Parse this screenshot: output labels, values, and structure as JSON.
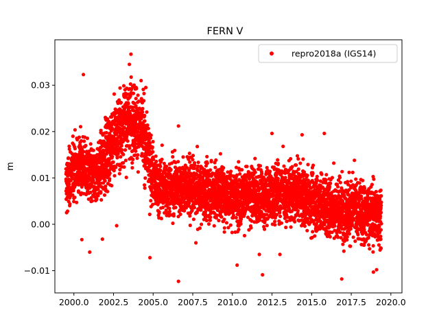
{
  "chart_data": {
    "type": "scatter",
    "title": "FERN V",
    "xlabel": "",
    "ylabel": "m",
    "xlim": [
      1998.8,
      2020.7
    ],
    "ylim": [
      -0.0148,
      0.0398
    ],
    "xticks": [
      2000.0,
      2002.5,
      2005.0,
      2007.5,
      2010.0,
      2012.5,
      2015.0,
      2017.5,
      2020.0
    ],
    "xtick_labels": [
      "2000.0",
      "2002.5",
      "2005.0",
      "2007.5",
      "2010.0",
      "2012.5",
      "2015.0",
      "2017.5",
      "2020.0"
    ],
    "yticks": [
      -0.01,
      0.0,
      0.01,
      0.02,
      0.03
    ],
    "ytick_labels": [
      "−0.01",
      "0.00",
      "0.01",
      "0.02",
      "0.03"
    ],
    "grid": false,
    "legend": {
      "position": "top-right",
      "entries": [
        "repro2018a (IGS14)"
      ]
    },
    "series": [
      {
        "name": "repro2018a (IGS14)",
        "color": "#ff0000",
        "marker": "circle",
        "x_range": [
          1999.5,
          2019.4
        ],
        "notes_trend": [
          [
            1999.5,
            0.008
          ],
          [
            2000.0,
            0.012
          ],
          [
            2000.5,
            0.013
          ],
          [
            2001.0,
            0.01
          ],
          [
            2001.5,
            0.011
          ],
          [
            2002.0,
            0.015
          ],
          [
            2002.5,
            0.018
          ],
          [
            2003.0,
            0.021
          ],
          [
            2003.5,
            0.023
          ],
          [
            2004.0,
            0.022
          ],
          [
            2004.5,
            0.018
          ],
          [
            2004.9,
            0.012
          ],
          [
            2005.2,
            0.008
          ],
          [
            2006.0,
            0.008
          ],
          [
            2007.0,
            0.008
          ],
          [
            2008.0,
            0.007
          ],
          [
            2009.0,
            0.007
          ],
          [
            2010.0,
            0.006
          ],
          [
            2011.0,
            0.006
          ],
          [
            2012.0,
            0.006
          ],
          [
            2013.0,
            0.007
          ],
          [
            2014.0,
            0.007
          ],
          [
            2015.0,
            0.005
          ],
          [
            2016.0,
            0.004
          ],
          [
            2017.0,
            0.003
          ],
          [
            2018.0,
            0.003
          ],
          [
            2019.0,
            0.002
          ],
          [
            2019.4,
            0.002
          ]
        ],
        "outliers": [
          [
            2000.6,
            0.0323
          ],
          [
            2003.6,
            0.0367
          ],
          [
            2003.5,
            0.0345
          ],
          [
            2001.0,
            -0.006
          ],
          [
            2002.7,
            -0.0003
          ],
          [
            2004.8,
            -0.0072
          ],
          [
            2006.6,
            -0.0123
          ],
          [
            2006.6,
            0.0212
          ],
          [
            2010.3,
            -0.0088
          ],
          [
            2011.9,
            -0.0109
          ],
          [
            2011.7,
            -0.0065
          ],
          [
            2013.0,
            -0.0065
          ],
          [
            2014.4,
            0.0193
          ],
          [
            2015.8,
            0.0196
          ],
          [
            2016.9,
            -0.0118
          ],
          [
            2017.7,
            0.0138
          ],
          [
            2018.9,
            -0.0103
          ],
          [
            2019.1,
            -0.0098
          ],
          [
            2000.5,
            -0.0033
          ],
          [
            2001.8,
            -0.0032
          ],
          [
            2007.7,
            -0.004
          ],
          [
            2012.5,
            0.0196
          ],
          [
            2016.4,
            0.0132
          ],
          [
            2013.2,
            0.0168
          ]
        ]
      }
    ]
  }
}
